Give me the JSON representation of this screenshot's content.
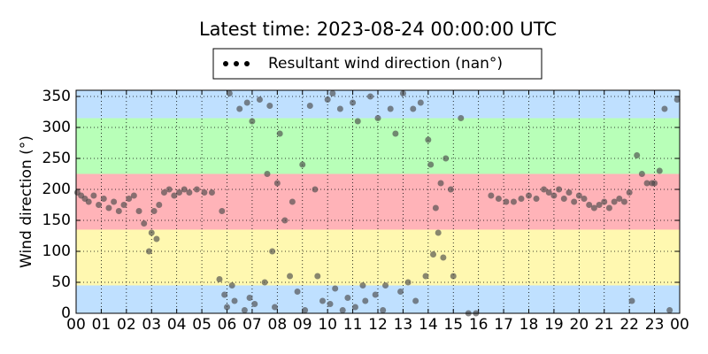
{
  "chart_data": {
    "type": "scatter",
    "title": "Latest time: 2023-08-24 00:00:00 UTC",
    "y_label": "Wind direction (°)",
    "bands": [
      {
        "from": 0,
        "to": 45,
        "color": "#bfe0ff"
      },
      {
        "from": 45,
        "to": 135,
        "color": "#fff8b0"
      },
      {
        "from": 135,
        "to": 225,
        "color": "#ffb3b8"
      },
      {
        "from": 225,
        "to": 315,
        "color": "#b8ffb8"
      },
      {
        "from": 315,
        "to": 360,
        "color": "#bfe0ff"
      }
    ],
    "xlim": [
      0,
      24
    ],
    "ylim": [
      0,
      360
    ],
    "xticks": [
      {
        "value": 0,
        "label": "00"
      },
      {
        "value": 1,
        "label": "01"
      },
      {
        "value": 2,
        "label": "02"
      },
      {
        "value": 3,
        "label": "03"
      },
      {
        "value": 4,
        "label": "04"
      },
      {
        "value": 5,
        "label": "05"
      },
      {
        "value": 6,
        "label": "06"
      },
      {
        "value": 7,
        "label": "07"
      },
      {
        "value": 8,
        "label": "08"
      },
      {
        "value": 9,
        "label": "09"
      },
      {
        "value": 10,
        "label": "10"
      },
      {
        "value": 11,
        "label": "11"
      },
      {
        "value": 12,
        "label": "12"
      },
      {
        "value": 13,
        "label": "13"
      },
      {
        "value": 14,
        "label": "14"
      },
      {
        "value": 15,
        "label": "15"
      },
      {
        "value": 16,
        "label": "16"
      },
      {
        "value": 17,
        "label": "17"
      },
      {
        "value": 18,
        "label": "18"
      },
      {
        "value": 19,
        "label": "19"
      },
      {
        "value": 20,
        "label": "20"
      },
      {
        "value": 21,
        "label": "21"
      },
      {
        "value": 22,
        "label": "22"
      },
      {
        "value": 23,
        "label": "23"
      },
      {
        "value": 24,
        "label": "00"
      }
    ],
    "yticks": [
      0,
      50,
      100,
      150,
      200,
      250,
      300,
      350
    ],
    "grid": true,
    "series": [
      {
        "name": "Resultant wind direction (nan°)",
        "color": "#4a4a4a",
        "x": [
          0.05,
          0.2,
          0.35,
          0.5,
          0.7,
          0.9,
          1.1,
          1.3,
          1.5,
          1.7,
          1.9,
          2.1,
          2.3,
          2.5,
          2.7,
          2.9,
          3.0,
          3.1,
          3.2,
          3.3,
          3.5,
          3.7,
          3.9,
          4.1,
          4.3,
          4.5,
          4.8,
          5.1,
          5.4,
          5.7,
          5.8,
          5.9,
          6.0,
          6.1,
          6.2,
          6.3,
          6.5,
          6.7,
          6.8,
          6.9,
          7.0,
          7.1,
          7.3,
          7.5,
          7.6,
          7.7,
          7.8,
          7.9,
          8.0,
          8.1,
          8.3,
          8.5,
          8.6,
          8.8,
          9.0,
          9.1,
          9.3,
          9.5,
          9.6,
          9.8,
          10.0,
          10.1,
          10.2,
          10.3,
          10.5,
          10.6,
          10.8,
          11.0,
          11.1,
          11.2,
          11.4,
          11.5,
          11.7,
          11.9,
          12.0,
          12.2,
          12.3,
          12.5,
          12.7,
          12.9,
          13.0,
          13.2,
          13.4,
          13.5,
          13.7,
          13.9,
          14.0,
          14.1,
          14.2,
          14.3,
          14.4,
          14.5,
          14.6,
          14.7,
          14.9,
          15.0,
          15.3,
          15.6,
          15.9,
          16.5,
          16.8,
          17.1,
          17.4,
          17.7,
          18.0,
          18.3,
          18.6,
          18.8,
          19.0,
          19.2,
          19.4,
          19.6,
          19.8,
          20.0,
          20.2,
          20.4,
          20.6,
          20.8,
          21.0,
          21.2,
          21.4,
          21.6,
          21.8,
          22.0,
          22.1,
          22.3,
          22.5,
          22.7,
          22.9,
          23.0,
          23.2,
          23.4,
          23.6,
          23.9
        ],
        "values": [
          195,
          190,
          185,
          180,
          190,
          175,
          185,
          170,
          180,
          165,
          175,
          185,
          190,
          165,
          145,
          100,
          130,
          165,
          120,
          175,
          195,
          200,
          190,
          195,
          200,
          195,
          200,
          195,
          195,
          55,
          165,
          30,
          10,
          355,
          45,
          20,
          330,
          5,
          340,
          25,
          310,
          15,
          345,
          50,
          225,
          335,
          100,
          10,
          210,
          290,
          150,
          60,
          180,
          35,
          240,
          5,
          335,
          200,
          60,
          20,
          345,
          15,
          355,
          40,
          330,
          5,
          25,
          340,
          10,
          310,
          45,
          20,
          350,
          30,
          315,
          5,
          45,
          330,
          290,
          35,
          355,
          50,
          330,
          20,
          340,
          60,
          280,
          240,
          95,
          170,
          130,
          210,
          90,
          250,
          200,
          60,
          315,
          0,
          0,
          190,
          185,
          180,
          180,
          185,
          190,
          185,
          200,
          195,
          190,
          200,
          185,
          195,
          180,
          190,
          185,
          175,
          170,
          175,
          180,
          170,
          180,
          185,
          180,
          195,
          20,
          255,
          225,
          210,
          210,
          210,
          230,
          330,
          5,
          345
        ]
      }
    ],
    "legend": "upper center"
  }
}
